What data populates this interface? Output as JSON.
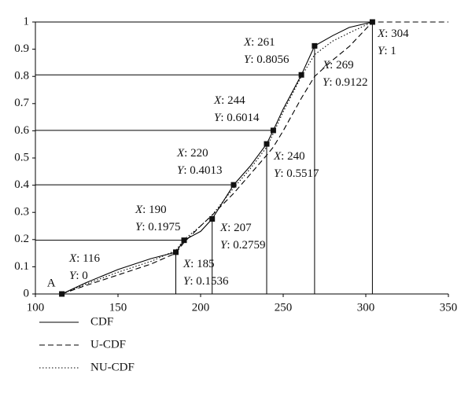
{
  "chart_data": {
    "type": "line",
    "x": [
      116,
      130,
      150,
      170,
      185,
      190,
      200,
      207,
      220,
      230,
      240,
      244,
      250,
      261,
      269,
      280,
      290,
      304,
      350
    ],
    "series": [
      {
        "name": "CDF",
        "color": "#000000",
        "dash": "solid",
        "values": [
          0,
          0.04,
          0.09,
          0.13,
          0.1536,
          0.1975,
          0.23,
          0.2759,
          0.4013,
          0.47,
          0.5517,
          0.6014,
          0.68,
          0.8056,
          0.9122,
          0.95,
          0.98,
          1,
          null
        ]
      },
      {
        "name": "U-CDF",
        "color": "#000000",
        "dash": "dashed",
        "values": [
          0,
          0.03,
          0.07,
          0.11,
          0.15,
          0.19,
          0.25,
          0.29,
          0.37,
          0.44,
          0.51,
          0.54,
          0.6,
          0.72,
          0.8,
          0.86,
          0.91,
          1,
          1
        ]
      },
      {
        "name": "NU-CDF",
        "color": "#000000",
        "dash": "dotted",
        "values": [
          0,
          0.035,
          0.08,
          0.12,
          0.16,
          0.2,
          0.25,
          0.29,
          0.39,
          0.46,
          0.54,
          0.59,
          0.67,
          0.8,
          0.88,
          0.93,
          0.96,
          1,
          null
        ]
      }
    ],
    "xlim": [
      100,
      350
    ],
    "xticks": [
      100,
      150,
      200,
      250,
      300,
      350
    ],
    "ylim": [
      0,
      1
    ],
    "yticks": [
      0,
      0.1,
      0.2,
      0.3,
      0.4,
      0.5,
      0.6,
      0.7,
      0.8,
      0.9,
      1
    ],
    "point_label": "A",
    "annotations": [
      {
        "x": 116,
        "y": 0,
        "x_text": "X: 116",
        "y_text": "Y: 0",
        "guide": "none"
      },
      {
        "x": 185,
        "y": 0.1536,
        "x_text": "X: 185",
        "y_text": "Y: 0.1536",
        "guide": "vertical"
      },
      {
        "x": 190,
        "y": 0.1975,
        "x_text": "X: 190",
        "y_text": "Y: 0.1975",
        "guide": "horizontal"
      },
      {
        "x": 207,
        "y": 0.2759,
        "x_text": "X: 207",
        "y_text": "Y: 0.2759",
        "guide": "vertical"
      },
      {
        "x": 220,
        "y": 0.4013,
        "x_text": "X: 220",
        "y_text": "Y: 0.4013",
        "guide": "horizontal"
      },
      {
        "x": 240,
        "y": 0.5517,
        "x_text": "X: 240",
        "y_text": "Y: 0.5517",
        "guide": "vertical"
      },
      {
        "x": 244,
        "y": 0.6014,
        "x_text": "X: 244",
        "y_text": "Y: 0.6014",
        "guide": "horizontal"
      },
      {
        "x": 261,
        "y": 0.8056,
        "x_text": "X: 261",
        "y_text": "Y: 0.8056",
        "guide": "horizontal"
      },
      {
        "x": 269,
        "y": 0.9122,
        "x_text": "X: 269",
        "y_text": "Y: 0.9122",
        "guide": "vertical"
      },
      {
        "x": 304,
        "y": 1,
        "x_text": "X: 304",
        "y_text": "Y: 1",
        "guide": "both"
      }
    ]
  }
}
